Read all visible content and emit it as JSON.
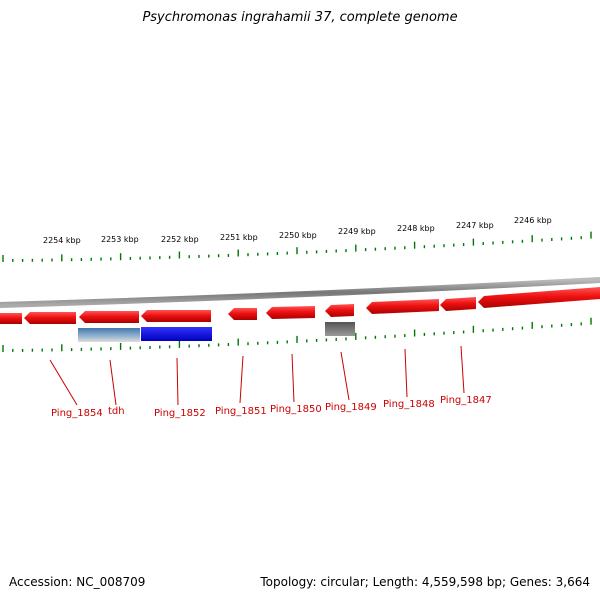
{
  "title": "Psychromonas ingrahamii 37, complete genome",
  "accession": "Accession: NC_008709",
  "summary": "Topology: circular; Length: 4,559,598 bp; Genes: 3,664",
  "colors": {
    "gene_red": "#ee1111",
    "gene_blue": "#0000dd",
    "gene_gray": "#666666",
    "tick_green": "#007700",
    "backbone_gray": "#888888",
    "label_red": "#cc0000"
  },
  "kbp_labels": [
    "2254 kbp",
    "2253 kbp",
    "2252 kbp",
    "2251 kbp",
    "2250 kbp",
    "2249 kbp",
    "2248 kbp",
    "2247 kbp",
    "2246 kbp"
  ],
  "gene_labels": [
    "Ping_1854",
    "tdh",
    "Ping_1852",
    "Ping_1851",
    "Ping_1850",
    "Ping_1849",
    "Ping_1848",
    "Ping_1847"
  ]
}
